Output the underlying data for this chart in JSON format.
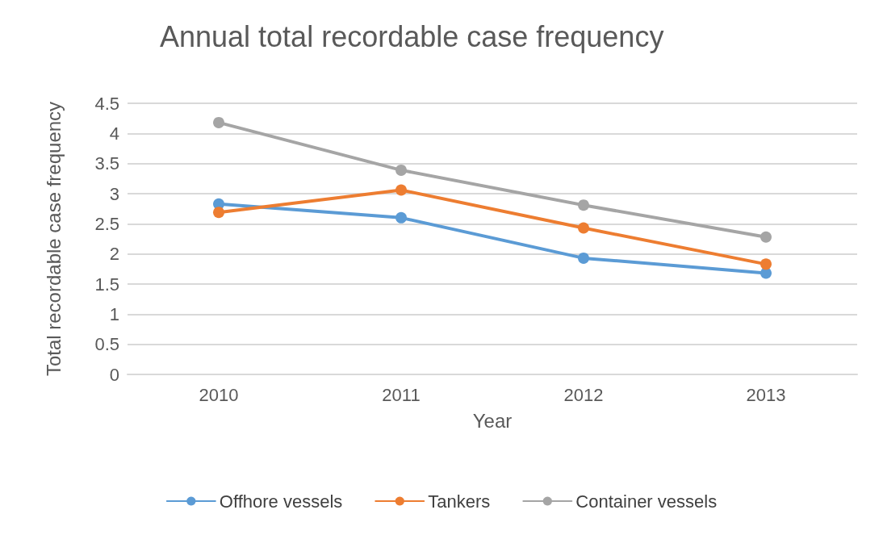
{
  "chart_data": {
    "type": "line",
    "title": "Annual total recordable case frequency",
    "xlabel": "Year",
    "ylabel": "Total recordable case frequency",
    "categories": [
      "2010",
      "2011",
      "2012",
      "2013"
    ],
    "series": [
      {
        "name": "Offhore vessels",
        "color": "#5b9bd5",
        "values": [
          2.83,
          2.6,
          1.93,
          1.68
        ]
      },
      {
        "name": "Tankers",
        "color": "#ed7d31",
        "values": [
          2.69,
          3.06,
          2.43,
          1.83
        ]
      },
      {
        "name": "Container vessels",
        "color": "#a5a5a5",
        "values": [
          4.18,
          3.39,
          2.81,
          2.28
        ]
      }
    ],
    "ylim": [
      0,
      4.5
    ],
    "yticks": [
      0,
      0.5,
      1,
      1.5,
      2,
      2.5,
      3,
      3.5,
      4,
      4.5
    ],
    "grid": "y",
    "legend": "bottom",
    "marker": "circle",
    "line_style": "solid"
  }
}
